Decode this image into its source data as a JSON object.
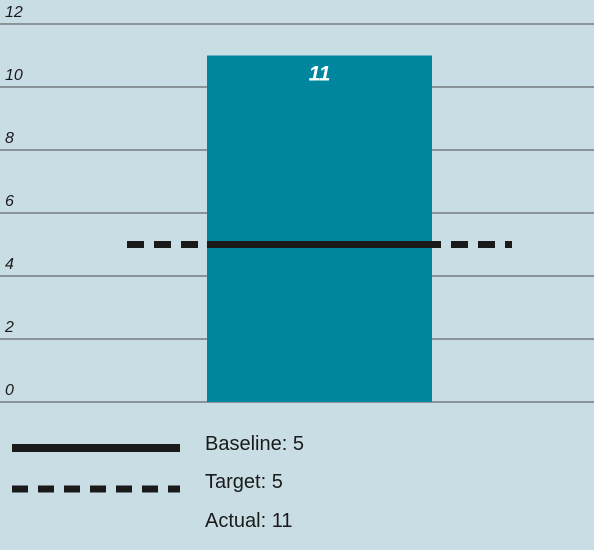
{
  "chart_data": {
    "type": "bar",
    "categories": [
      ""
    ],
    "values": [
      11
    ],
    "data_labels": [
      "11"
    ],
    "ylim": [
      0,
      12
    ],
    "yticks": [
      0,
      2,
      4,
      6,
      8,
      10,
      12
    ],
    "grid": true,
    "lines": [
      {
        "name": "Baseline",
        "value": 5,
        "style": "solid"
      },
      {
        "name": "Target",
        "value": 5,
        "style": "dashed"
      }
    ],
    "legend": {
      "placement": "bottom-left",
      "entries": [
        {
          "key": "baseline",
          "style": "solid",
          "label": "Baseline: 5"
        },
        {
          "key": "target",
          "style": "dashed",
          "label": "Target: 5"
        },
        {
          "key": "actual",
          "style": "none",
          "label": "Actual: 11"
        }
      ]
    }
  },
  "colors": {
    "background": "#c9dde5",
    "bar": "#00869e",
    "grid": "#4a4a4a",
    "line": "#1a1a1a",
    "label": "#ffffff"
  }
}
